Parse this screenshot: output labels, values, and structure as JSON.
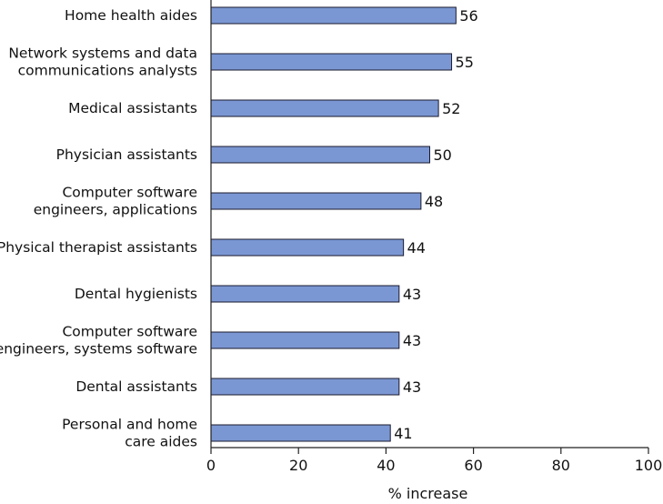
{
  "chart_data": {
    "type": "bar",
    "orientation": "horizontal",
    "categories": [
      [
        "Home health aides"
      ],
      [
        "Network systems and data",
        "communications analysts"
      ],
      [
        "Medical assistants"
      ],
      [
        "Physician assistants"
      ],
      [
        "Computer software",
        "engineers, applications"
      ],
      [
        "Physical therapist assistants"
      ],
      [
        "Dental hygienists"
      ],
      [
        "Computer software",
        "engineers, systems software"
      ],
      [
        "Dental assistants"
      ],
      [
        "Personal and home",
        "care aides"
      ]
    ],
    "values": [
      56,
      55,
      52,
      50,
      48,
      44,
      43,
      43,
      43,
      41
    ],
    "xlabel": "% increase",
    "xlim": [
      0,
      100
    ],
    "xticks": [
      0,
      20,
      40,
      60,
      80,
      100
    ],
    "bar_color": "#7b97d3",
    "bar_edge_color": "#1a1a2e"
  }
}
